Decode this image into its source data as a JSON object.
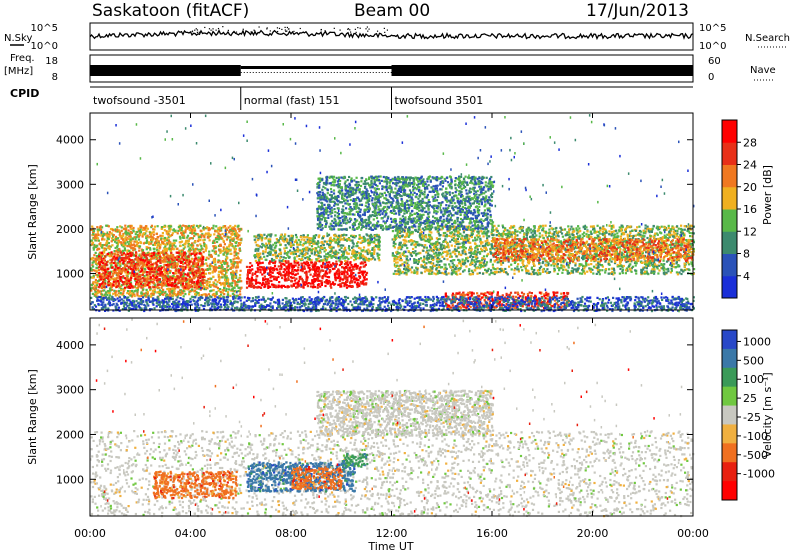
{
  "header": {
    "station": "Saskatoon (fitACF)",
    "beam": "Beam 00",
    "date": "17/Jun/2013"
  },
  "nsky_panel": {
    "left_label": "N.Sky",
    "left_ticks": [
      "10^5",
      "10^0"
    ],
    "right_ticks": [
      "10^5",
      "10^0"
    ],
    "right_label": "N.Search"
  },
  "freq_panel": {
    "left_label_top": "Freq.",
    "left_label_unit": "[MHz]",
    "left_ticks": [
      "18",
      "8"
    ],
    "right_ticks": [
      "60",
      "0"
    ],
    "right_label": "Nave"
  },
  "cpid_panel": {
    "label": "CPID",
    "segments": [
      {
        "name": "twofsound -3501",
        "start_hour": 0,
        "end_hour": 6
      },
      {
        "name": "normal (fast) 151",
        "start_hour": 6,
        "end_hour": 12
      },
      {
        "name": "twofsound 3501",
        "start_hour": 12,
        "end_hour": 24
      }
    ]
  },
  "power_panel": {
    "ylabel": "Slant Range [km]",
    "colorbar_label": "Power [dB]",
    "colorbar_ticks": [
      "4",
      "8",
      "12",
      "16",
      "20",
      "24",
      "28"
    ],
    "colorbar_colors": [
      "#1a2fd8",
      "#2a52b8",
      "#3c8a6e",
      "#58b848",
      "#f0b020",
      "#f07820",
      "#e83018",
      "#ff0000"
    ]
  },
  "velocity_panel": {
    "ylabel": "Slant Range [km]",
    "colorbar_label": "Velocity [m s⁻¹]",
    "colorbar_ticks": [
      "1000",
      "500",
      "100",
      "25",
      "-25",
      "-100",
      "-500",
      "-1000"
    ],
    "colorbar_colors": [
      "#2848c8",
      "#3a78a8",
      "#3a9a58",
      "#70c840",
      "#c8c8c0",
      "#f0b040",
      "#f07020",
      "#e82010",
      "#ff0000"
    ]
  },
  "xaxis": {
    "label": "Time UT",
    "tick_labels": [
      "00:00",
      "04:00",
      "08:00",
      "12:00",
      "16:00",
      "20:00",
      "00:00"
    ]
  },
  "chart_data": [
    {
      "type": "heatmap",
      "title": "Power",
      "xlabel": "Time UT",
      "ylabel": "Slant Range [km]",
      "xlim_hours": [
        0,
        24
      ],
      "ylim": [
        180,
        4600
      ],
      "yticks": [
        1000,
        2000,
        3000,
        4000
      ],
      "colorbar": {
        "label": "Power [dB]",
        "ticks": [
          4,
          8,
          12,
          16,
          20,
          24,
          28
        ]
      },
      "regions": [
        {
          "t0": 0.0,
          "t1": 6.0,
          "r0": 500,
          "r1": 2100,
          "level_db": 20
        },
        {
          "t0": 0.3,
          "t1": 4.5,
          "r0": 700,
          "r1": 1500,
          "level_db": 28
        },
        {
          "t0": 6.2,
          "t1": 11.0,
          "r0": 700,
          "r1": 1300,
          "level_db": 30
        },
        {
          "t0": 6.5,
          "t1": 11.5,
          "r0": 1300,
          "r1": 1900,
          "level_db": 16
        },
        {
          "t0": 12.0,
          "t1": 24.0,
          "r0": 1000,
          "r1": 2100,
          "level_db": 14
        },
        {
          "t0": 16.0,
          "t1": 24.0,
          "r0": 1300,
          "r1": 1800,
          "level_db": 24
        },
        {
          "t0": 14.0,
          "t1": 19.0,
          "r0": 250,
          "r1": 600,
          "level_db": 26
        },
        {
          "t0": 0.0,
          "t1": 24.0,
          "r0": 180,
          "r1": 500,
          "level_db": 8
        },
        {
          "t0": 9.0,
          "t1": 16.0,
          "r0": 2000,
          "r1": 3200,
          "level_db": 10
        }
      ]
    },
    {
      "type": "heatmap",
      "title": "Velocity",
      "xlabel": "Time UT",
      "ylabel": "Slant Range [km]",
      "xlim_hours": [
        0,
        24
      ],
      "ylim": [
        180,
        4600
      ],
      "yticks": [
        1000,
        2000,
        3000,
        4000
      ],
      "colorbar": {
        "label": "Velocity [m s⁻¹]",
        "ticks": [
          1000,
          500,
          100,
          25,
          -25,
          -100,
          -500,
          -1000
        ]
      },
      "regions": [
        {
          "t0": 0.0,
          "t1": 24.0,
          "r0": 200,
          "r1": 2100,
          "velocity": 0
        },
        {
          "t0": 2.5,
          "t1": 5.8,
          "r0": 600,
          "r1": 1200,
          "velocity": -300
        },
        {
          "t0": 6.2,
          "t1": 10.5,
          "r0": 750,
          "r1": 1400,
          "velocity": 150
        },
        {
          "t0": 8.0,
          "t1": 10.0,
          "r0": 800,
          "r1": 1300,
          "velocity": -200
        },
        {
          "t0": 10.0,
          "t1": 11.0,
          "r0": 1300,
          "r1": 1600,
          "velocity": 60
        },
        {
          "t0": 9.0,
          "t1": 16.0,
          "r0": 2000,
          "r1": 3000,
          "velocity": 0
        }
      ]
    }
  ]
}
